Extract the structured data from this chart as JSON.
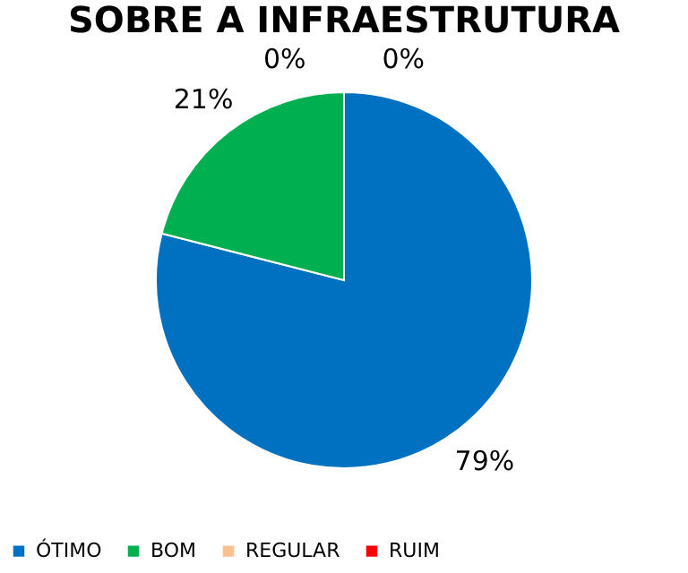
{
  "chart_data": {
    "type": "pie",
    "title": "SOBRE A INFRAESTRUTURA",
    "categories": [
      "ÓTIMO",
      "BOM",
      "REGULAR",
      "RUIM"
    ],
    "values": [
      79,
      21,
      0,
      0
    ],
    "colors": [
      "#0070c0",
      "#00b050",
      "#fac090",
      "#ff0000"
    ],
    "value_labels": [
      "79%",
      "21%",
      "0%",
      "0%"
    ],
    "legend": "bottom"
  }
}
